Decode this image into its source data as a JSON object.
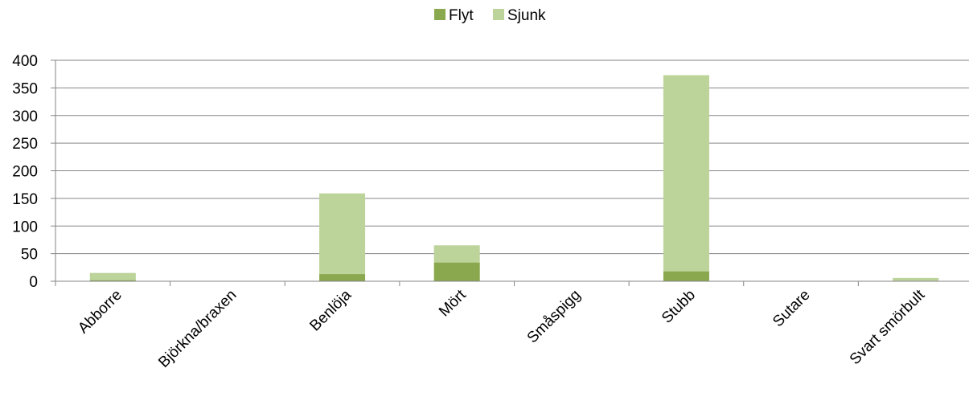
{
  "chart_data": {
    "type": "bar",
    "stacked": true,
    "title": "",
    "xlabel": "",
    "ylabel": "",
    "ylim": [
      0,
      400
    ],
    "yticks": [
      0,
      50,
      100,
      150,
      200,
      250,
      300,
      350,
      400
    ],
    "grid": true,
    "legend_position": "top-center",
    "categories": [
      "Abborre",
      "Björkna/braxen",
      "Benlöja",
      "Mört",
      "Småspigg",
      "Stubb",
      "Sutare",
      "Svart smörbult"
    ],
    "series": [
      {
        "name": "Flyt",
        "color": "#8aa84e",
        "values": [
          2,
          0,
          13,
          34,
          0,
          18,
          0,
          1
        ]
      },
      {
        "name": "Sjunk",
        "color": "#bcd39a",
        "values": [
          13,
          0,
          146,
          31,
          0,
          355,
          0,
          5
        ]
      }
    ]
  }
}
